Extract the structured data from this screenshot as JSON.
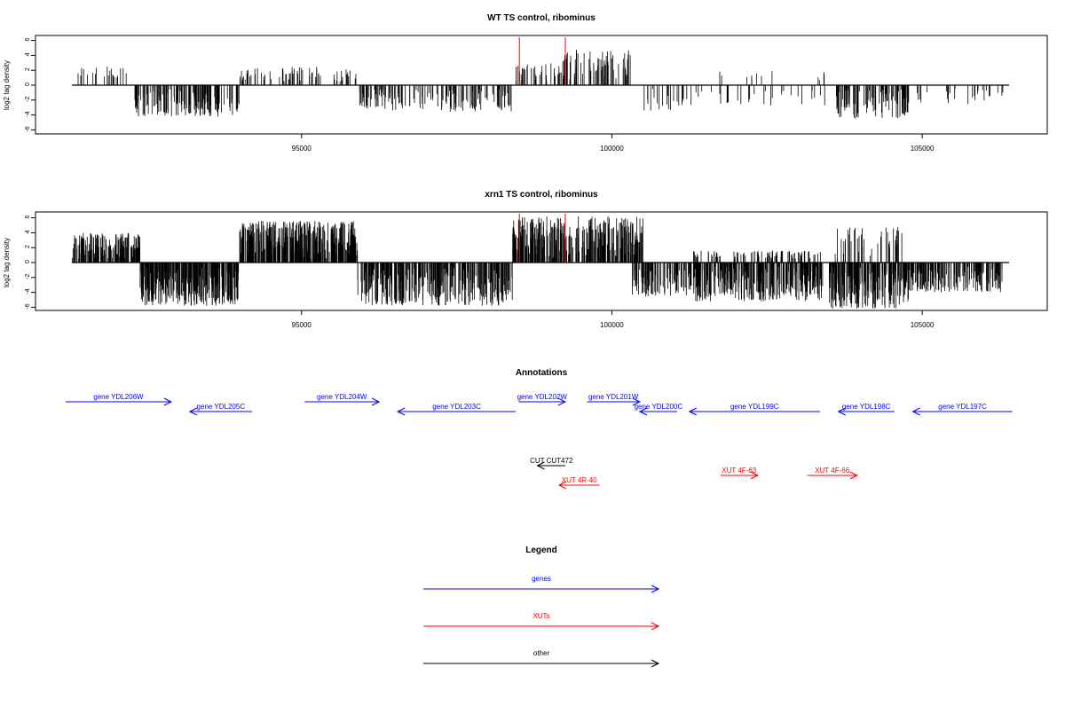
{
  "colors": {
    "gene": "#0000ff",
    "xut": "#ff0000",
    "other": "#000000",
    "marker": "#ff0000",
    "trace": "#000000"
  },
  "chart_data": [
    {
      "type": "bar",
      "title": "WT TS control, ribominus",
      "ylabel": "log2 tag density",
      "xlim": [
        91300,
        106400
      ],
      "ylim": [
        -6.5,
        6.5
      ],
      "y_ticks": [
        "6",
        "4",
        "2",
        "0",
        "-2",
        "-4",
        "-6"
      ],
      "x_ticks": [
        "95000",
        "100000",
        "105000"
      ],
      "markers_x": [
        98510,
        99250
      ],
      "segments": [
        {
          "x": [
            91300,
            92200
          ],
          "sign": 1,
          "amp": 2.5,
          "density": 0.35
        },
        {
          "x": [
            92300,
            94000
          ],
          "sign": -1,
          "amp": 4.2,
          "density": 1.3
        },
        {
          "x": [
            94000,
            94600
          ],
          "sign": 1,
          "amp": 2.4,
          "density": 0.5
        },
        {
          "x": [
            94600,
            95300
          ],
          "sign": 1,
          "amp": 2.5,
          "density": 0.7
        },
        {
          "x": [
            95300,
            95900
          ],
          "sign": 1,
          "amp": 2.2,
          "density": 0.4
        },
        {
          "x": [
            95900,
            96400
          ],
          "sign": -1,
          "amp": 3.2,
          "density": 1.0
        },
        {
          "x": [
            96400,
            98400
          ],
          "sign": -1,
          "amp": 3.6,
          "density": 0.8
        },
        {
          "x": [
            98400,
            99200
          ],
          "sign": 1,
          "amp": 3.0,
          "density": 0.6
        },
        {
          "x": [
            99200,
            100300
          ],
          "sign": 1,
          "amp": 4.8,
          "density": 0.9
        },
        {
          "x": [
            100500,
            101200
          ],
          "sign": -1,
          "amp": 3.8,
          "density": 0.4
        },
        {
          "x": [
            101200,
            103500
          ],
          "sign": -1,
          "amp": 2.8,
          "density": 0.2
        },
        {
          "x": [
            101400,
            103500
          ],
          "sign": 1,
          "amp": 2.0,
          "density": 0.08
        },
        {
          "x": [
            103600,
            104800
          ],
          "sign": -1,
          "amp": 4.5,
          "density": 1.2
        },
        {
          "x": [
            104800,
            106300
          ],
          "sign": -1,
          "amp": 2.6,
          "density": 0.25
        }
      ]
    },
    {
      "type": "bar",
      "title": "xrn1 TS control, ribominus",
      "ylabel": "log2 tag density",
      "xlim": [
        91300,
        106400
      ],
      "ylim": [
        -6.5,
        6.5
      ],
      "y_ticks": [
        "6",
        "4",
        "2",
        "0",
        "-2",
        "-4",
        "-6"
      ],
      "x_ticks": [
        "95000",
        "100000",
        "105000"
      ],
      "markers_x": [
        98510,
        99250
      ],
      "segments": [
        {
          "x": [
            91300,
            92400
          ],
          "sign": 1,
          "amp": 4.0,
          "density": 2.2
        },
        {
          "x": [
            92400,
            94000
          ],
          "sign": -1,
          "amp": 5.8,
          "density": 2.6
        },
        {
          "x": [
            94000,
            95900
          ],
          "sign": 1,
          "amp": 5.6,
          "density": 2.8
        },
        {
          "x": [
            95900,
            98400
          ],
          "sign": -1,
          "amp": 5.8,
          "density": 1.8
        },
        {
          "x": [
            98400,
            100500
          ],
          "sign": 1,
          "amp": 6.2,
          "density": 2.2
        },
        {
          "x": [
            100300,
            101300
          ],
          "sign": -1,
          "amp": 4.6,
          "density": 1.4
        },
        {
          "x": [
            101300,
            103400
          ],
          "sign": -1,
          "amp": 5.2,
          "density": 2.0
        },
        {
          "x": [
            101300,
            103400
          ],
          "sign": 1,
          "amp": 1.6,
          "density": 0.6
        },
        {
          "x": [
            103500,
            104800
          ],
          "sign": -1,
          "amp": 6.2,
          "density": 2.4
        },
        {
          "x": [
            103500,
            104700
          ],
          "sign": 1,
          "amp": 4.8,
          "density": 0.5
        },
        {
          "x": [
            104800,
            106300
          ],
          "sign": -1,
          "amp": 4.0,
          "density": 1.6
        }
      ]
    }
  ],
  "annotations": {
    "title": "Annotations",
    "xlim": [
      91300,
      106400
    ],
    "features": [
      {
        "label": "gene YDL206W",
        "type": "gene",
        "strand": "+",
        "start": 91200,
        "end": 92900,
        "row": 0
      },
      {
        "label": "gene YDL205C",
        "type": "gene",
        "strand": "-",
        "start": 93200,
        "end": 94200,
        "row": 1
      },
      {
        "label": "gene YDL204W",
        "type": "gene",
        "strand": "+",
        "start": 95050,
        "end": 96250,
        "row": 0
      },
      {
        "label": "gene YDL203C",
        "type": "gene",
        "strand": "-",
        "start": 96550,
        "end": 98450,
        "row": 1
      },
      {
        "label": "gene YDL202W",
        "type": "gene",
        "strand": "+",
        "start": 98500,
        "end": 99250,
        "row": 0
      },
      {
        "label": "gene YDL201W",
        "type": "gene",
        "strand": "+",
        "start": 99600,
        "end": 100450,
        "row": 0
      },
      {
        "label": "gene YDL200C",
        "type": "gene",
        "strand": "-",
        "start": 100450,
        "end": 101050,
        "row": 1
      },
      {
        "label": "gene YDL199C",
        "type": "gene",
        "strand": "-",
        "start": 101250,
        "end": 103350,
        "row": 1
      },
      {
        "label": "gene YDL198C",
        "type": "gene",
        "strand": "-",
        "start": 103650,
        "end": 104550,
        "row": 1
      },
      {
        "label": "gene YDL197C",
        "type": "gene",
        "strand": "-",
        "start": 104850,
        "end": 106450,
        "row": 1
      },
      {
        "label": "CUT CUT472",
        "type": "other",
        "strand": "-",
        "start": 98800,
        "end": 99250,
        "row": 2
      },
      {
        "label": "XUT 4R-40",
        "type": "xut",
        "strand": "-",
        "start": 99150,
        "end": 99800,
        "row": 3
      },
      {
        "label": "XUT 4F-63",
        "type": "xut",
        "strand": "+",
        "start": 101750,
        "end": 102350,
        "row": 4
      },
      {
        "label": "XUT 4F-66",
        "type": "xut",
        "strand": "+",
        "start": 103150,
        "end": 103950,
        "row": 4
      }
    ]
  },
  "legend": {
    "title": "Legend",
    "items": [
      {
        "label": "genes",
        "type": "gene"
      },
      {
        "label": "XUTs",
        "type": "xut"
      },
      {
        "label": "other",
        "type": "other"
      }
    ]
  }
}
